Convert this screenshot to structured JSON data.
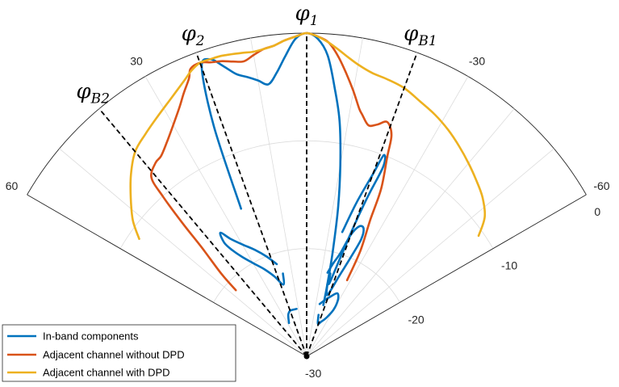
{
  "chart_data": {
    "type": "polar-line",
    "title": "",
    "theta_ticks": [
      "60",
      "30",
      "",
      "-30",
      "-60"
    ],
    "theta_tick_values": [
      60,
      30,
      0,
      -30,
      -60
    ],
    "r_ticks": [
      "0",
      "-10",
      "-20",
      "-30"
    ],
    "r_tick_values": [
      0,
      -10,
      -20,
      -30
    ],
    "rlim": [
      -30,
      0
    ],
    "theta_range_deg": [
      -60,
      60
    ],
    "annotations": [
      {
        "base": "φ",
        "sub": "1",
        "angle_deg": 0
      },
      {
        "base": "φ",
        "sub": "2",
        "angle_deg": 20
      },
      {
        "base": "φ",
        "sub": "B1",
        "angle_deg": -20
      },
      {
        "base": "φ",
        "sub": "B2",
        "angle_deg": 40
      }
    ],
    "series": [
      {
        "name": "In-band components",
        "color": "#0072BD",
        "segments": [
          {
            "theta": [
              24,
              22,
              20,
              18,
              16,
              14,
              12,
              10,
              8,
              6,
              4,
              2,
              0,
              -2,
              -4,
              -6,
              -8,
              -10,
              -12,
              -14,
              -16,
              -18
            ],
            "r": [
              -15,
              -7,
              -1.5,
              -1,
              -2,
              -3,
              -3.5,
              -4,
              -4.5,
              -3.5,
              -2,
              -0.5,
              0,
              -0.5,
              -2,
              -5,
              -8,
              -12,
              -16,
              -20,
              -23,
              -25
            ]
          },
          {
            "theta": [
              -16,
              -18,
              -20,
              -21,
              -22,
              -21,
              -20,
              -19,
              -18,
              -17,
              -16
            ],
            "r": [
              -18,
              -15,
              -12,
              -10,
              -11,
              -14,
              -17,
              -20,
              -22,
              -23,
              -22
            ]
          },
          {
            "theta": [
              -14,
              -16,
              -18,
              -20,
              -22,
              -24,
              -25,
              -24,
              -22,
              -20,
              -18,
              -16
            ],
            "r": [
              -22,
              -21,
              -20,
              -18,
              -17,
              -17,
              -18,
              -20,
              -22,
              -23.5,
              -24,
              -23
            ]
          },
          {
            "theta": [
              -14,
              -18,
              -22,
              -26,
              -29,
              -30,
              -27,
              -23,
              -19,
              -16
            ],
            "r": [
              -25,
              -24.5,
              -24,
              -23.5,
              -24,
              -25,
              -26,
              -26.5,
              -26.8,
              -26
            ]
          },
          {
            "theta": [
              18,
              22,
              26,
              30,
              33,
              35,
              36,
              35,
              33,
              30,
              26,
              22,
              18,
              16
            ],
            "r": [
              -21,
              -20,
              -19,
              -18,
              -17,
              -16,
              -17,
              -18,
              -19,
              -20,
              -21,
              -22,
              -23,
              -22
            ]
          },
          {
            "theta": [
              12,
              16,
              20,
              24,
              28
            ],
            "r": [
              -25.5,
              -25.5,
              -25.5,
              -25.8,
              -26.5
            ]
          }
        ]
      },
      {
        "name": "Adjacent channel without DPD",
        "color": "#D95319",
        "segments": [
          {
            "theta": [
              47,
              46,
              44,
              43,
              42,
              41,
              38,
              36,
              33,
              30,
              27,
              25,
              23,
              22,
              20,
              18,
              16,
              14,
              12,
              10,
              8,
              6,
              4,
              2,
              0,
              -2,
              -4,
              -6,
              -8,
              -10,
              -12,
              -13,
              -15,
              -17,
              -19,
              -21,
              -22,
              -24,
              -25,
              -27,
              -28
            ],
            "r": [
              -21,
              -19,
              -16,
              -13,
              -10,
              -8,
              -7.2,
              -7,
              -6.2,
              -5.2,
              -4,
              -3,
              -2,
              -1.2,
              -1,
              -1.3,
              -1.5,
              -1.8,
              -2,
              -1.6,
              -1.2,
              -1,
              -0.6,
              -0.3,
              0,
              -0.3,
              -0.8,
              -2,
              -3.5,
              -5,
              -6.5,
              -7,
              -7.8,
              -7.5,
              -7,
              -8,
              -10,
              -13,
              -16,
              -19,
              -22
            ]
          }
        ]
      },
      {
        "name": "Adjacent channel with DPD",
        "color": "#EDB120",
        "segments": [
          {
            "theta": [
              55,
              52,
              48,
              44,
              40,
              36,
              32,
              28,
              24,
              22,
              20,
              18,
              16,
              14,
              12,
              10,
              8,
              6,
              4,
              2,
              0,
              -2,
              -4,
              -6,
              -8,
              -10,
              -13,
              -16,
              -20,
              -24,
              -28,
              -32,
              -36,
              -40,
              -44,
              -48,
              -52,
              -55
            ],
            "r": [
              -11,
              -9.5,
              -8,
              -6.5,
              -5.2,
              -4.5,
              -3.8,
              -3,
              -2,
              -1.4,
              -1,
              -1,
              -1,
              -1.1,
              -1.2,
              -1.3,
              -1.2,
              -1,
              -0.6,
              -0.3,
              0,
              -0.3,
              -0.8,
              -1.4,
              -2,
              -2.5,
              -3,
              -3.2,
              -3.5,
              -4.1,
              -4.6,
              -5.2,
              -5.9,
              -6.6,
              -7.3,
              -8,
              -9,
              -10.5
            ]
          }
        ]
      }
    ]
  }
}
